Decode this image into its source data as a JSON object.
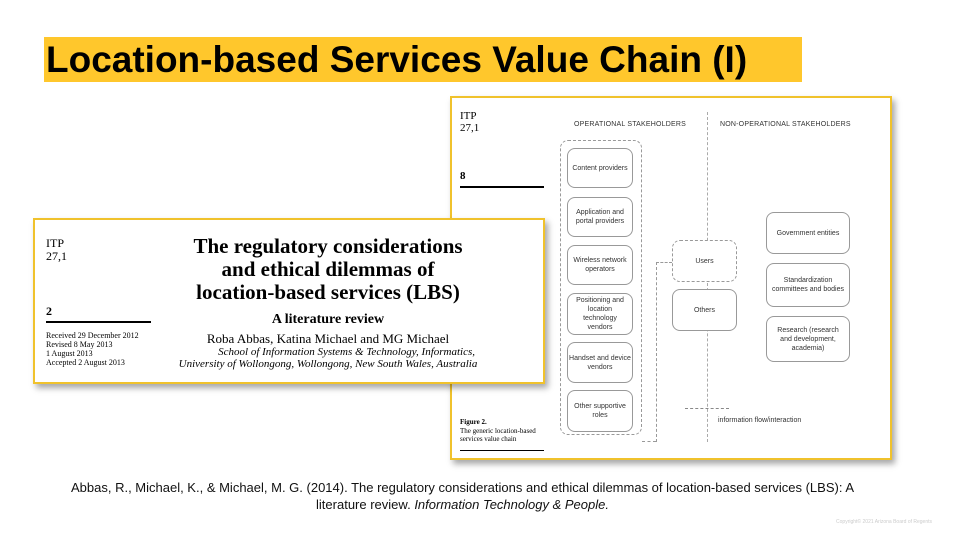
{
  "title": "Location-based Services Value Chain (I)",
  "figure_page": {
    "journal": "ITP",
    "volume": "27,1",
    "page": "8",
    "operational_header": "OPERATIONAL STAKEHOLDERS",
    "non_operational_header": "NON-OPERATIONAL STAKEHOLDERS",
    "operational": [
      [
        "Content providers"
      ],
      [
        "Application and",
        "portal providers"
      ],
      [
        "Wireless network",
        "operators"
      ],
      [
        "Positioning and",
        "location",
        "technology",
        "vendors"
      ],
      [
        "Handset and device",
        "vendors"
      ],
      [
        "Other supportive",
        "roles"
      ]
    ],
    "users": [
      "Users",
      "Others"
    ],
    "non_operational": [
      [
        "Government entities"
      ],
      [
        "Standardization",
        "committees and bodies"
      ],
      [
        "Research (research",
        "and development,",
        "academia)"
      ]
    ],
    "legend": "information flow/interaction",
    "caption_label": "Figure 2.",
    "caption": [
      "The generic location-based",
      "services value chain"
    ]
  },
  "article_page": {
    "journal": "ITP",
    "volume": "27,1",
    "page": "2",
    "title": [
      "The regulatory considerations",
      "and ethical dilemmas of",
      "location-based services (LBS)"
    ],
    "subtitle": "A literature review",
    "authors": "Roba Abbas, Katina Michael and MG Michael",
    "affiliation": [
      "School of Information Systems & Technology, Informatics,",
      "University of Wollongong, Wollongong, New South Wales, Australia"
    ],
    "dates": [
      "Received 29 December 2012",
      "Revised 8 May 2013",
      "1 August 2013",
      "Accepted 2 August 2013"
    ]
  },
  "citation": {
    "text": "Abbas, R., Michael, K., & Michael, M. G. (2014). The regulatory considerations and ethical dilemmas of location-based services (LBS): A literature review.",
    "journal": "Information Technology & People."
  },
  "copyright": "Copyright© 2021 Arizona Board of Regents"
}
